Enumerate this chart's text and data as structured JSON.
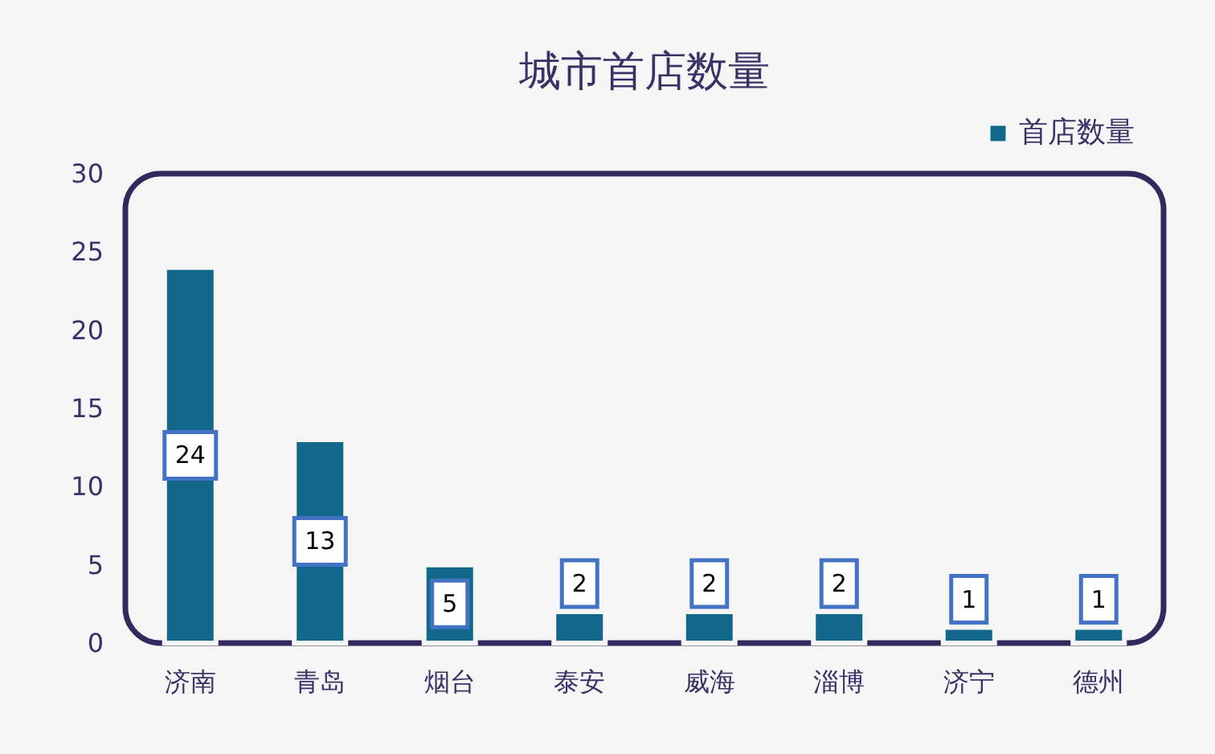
{
  "chart_data": {
    "type": "bar",
    "title": "城市首店数量",
    "categories": [
      "济南",
      "青岛",
      "烟台",
      "泰安",
      "威海",
      "淄博",
      "济宁",
      "德州"
    ],
    "series": [
      {
        "name": "首店数量",
        "color": "#11688a",
        "values": [
          24,
          13,
          5,
          2,
          2,
          2,
          1,
          1
        ]
      }
    ],
    "ylim": [
      0,
      30
    ],
    "yticks": [
      0,
      5,
      10,
      15,
      20,
      25,
      30
    ],
    "grid": false,
    "legend": "top right",
    "data_labels": true
  }
}
